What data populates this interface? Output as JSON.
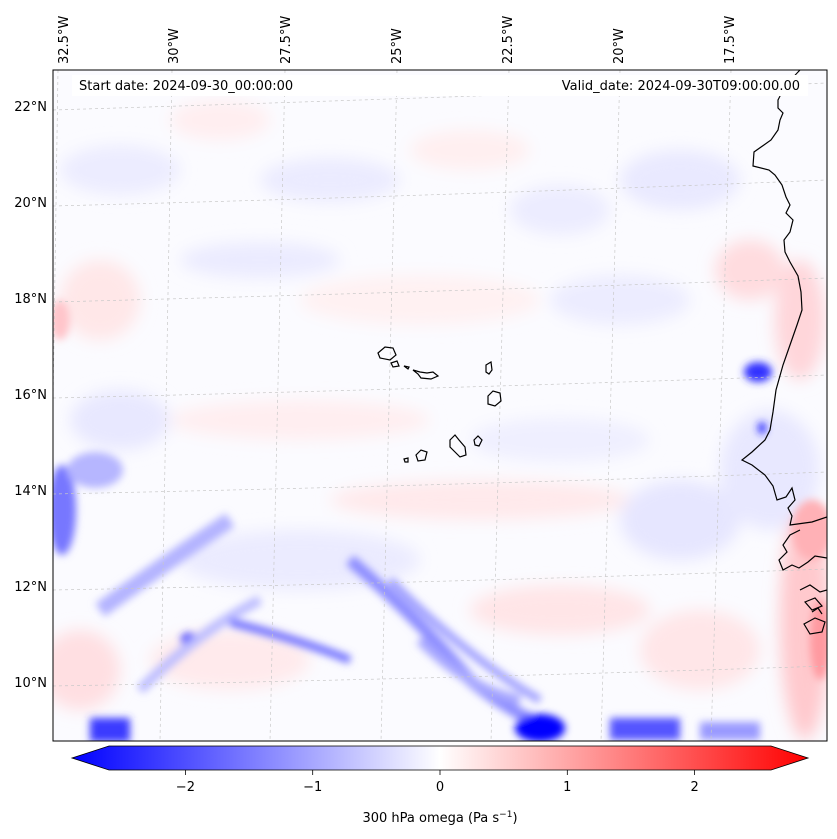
{
  "map": {
    "header": {
      "start_date": "Start date: 2024-09-30_00:00:00",
      "valid_date": "Valid_date: 2024-09-30T09:00:00.00"
    },
    "longitude_labels": [
      "32.5°W",
      "30°W",
      "27.5°W",
      "25°W",
      "22.5°W",
      "20°W",
      "17.5°W"
    ],
    "latitude_labels": [
      "22°N",
      "20°N",
      "18°N",
      "16°N",
      "14°N",
      "12°N",
      "10°N"
    ],
    "region": "Eastern tropical Atlantic, Cape Verde islands and West African coast",
    "field": "300 hPa omega"
  },
  "colorbar": {
    "label": "300 hPa omega (Pa s",
    "label_unit_exponent": "−1",
    "label_close": ")",
    "ticks": [
      "−2",
      "−1",
      "0",
      "1",
      "2"
    ],
    "tick_values": [
      -2,
      -1,
      0,
      1,
      2
    ],
    "range": [
      -2.6,
      2.6
    ],
    "extend": "both",
    "colors": {
      "low": "#0000ff",
      "mid": "#ffffff",
      "high": "#ff0000"
    }
  }
}
